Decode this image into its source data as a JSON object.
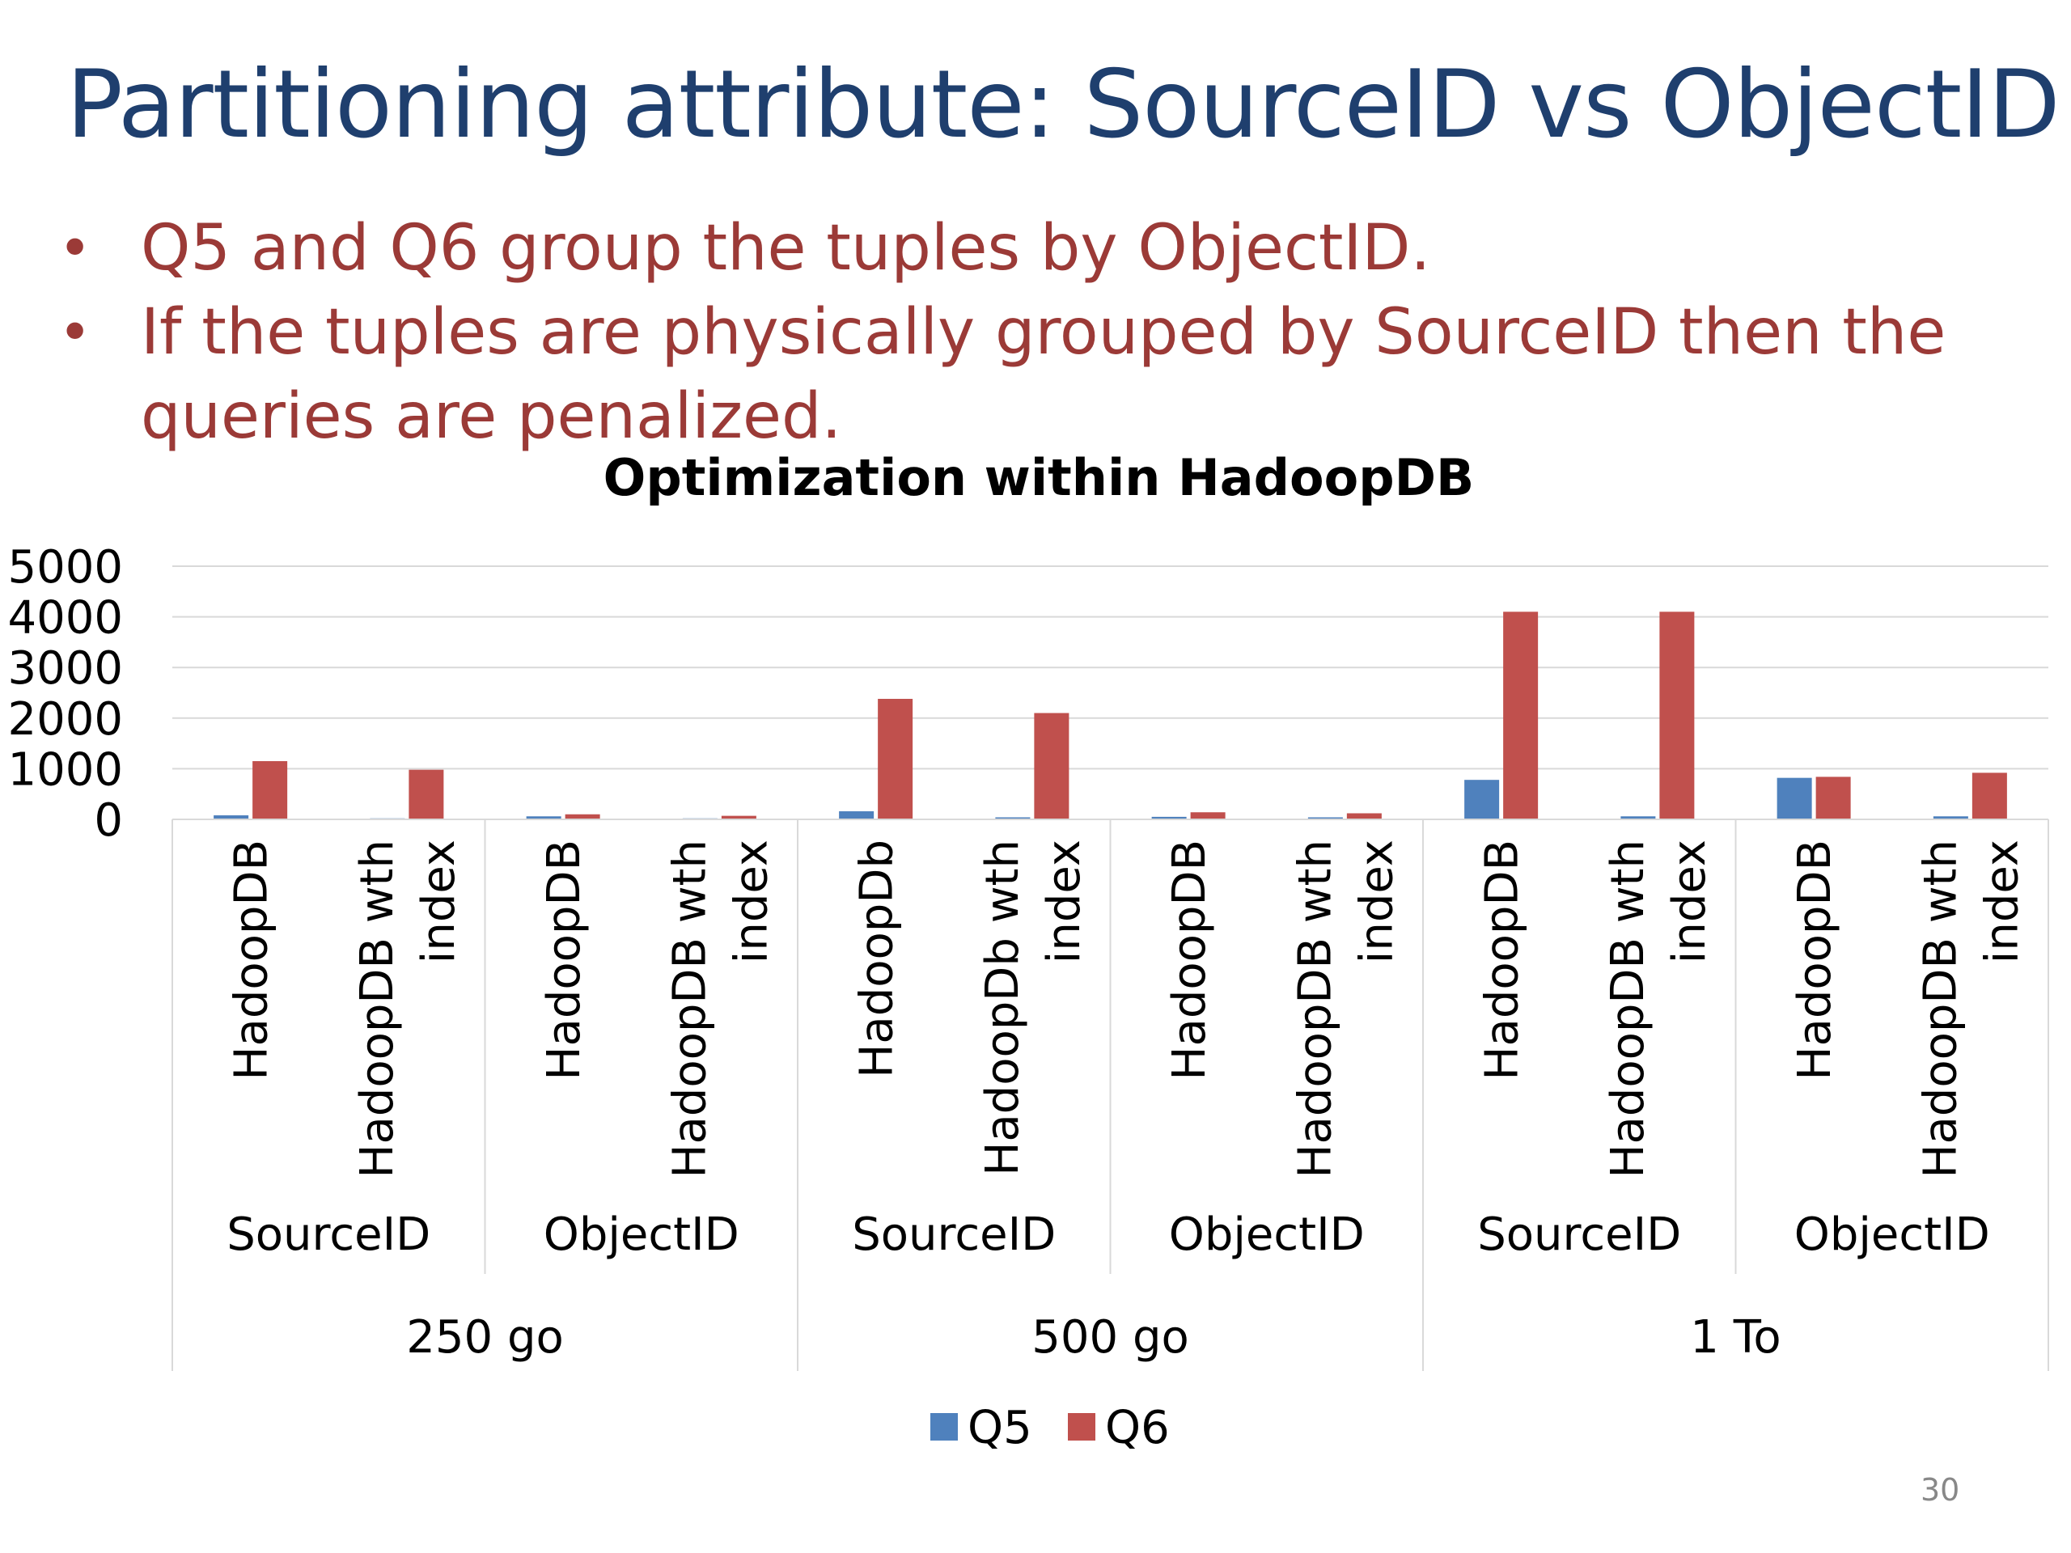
{
  "slide": {
    "title": "Partitioning attribute: SourceID vs ObjectID",
    "bullets": [
      "Q5 and Q6 group the tuples by ObjectID.",
      "If the tuples are physically grouped by SourceID  then the queries are penalized."
    ],
    "page_number": "30"
  },
  "chart_data": {
    "type": "bar",
    "title": "Optimization within HadoopDB",
    "ylim": [
      0,
      5000
    ],
    "y_ticks": [
      0,
      1000,
      2000,
      3000,
      4000,
      5000
    ],
    "grid": true,
    "legend_position": "bottom",
    "categories": [
      {
        "label": "HadoopDB",
        "attribute": "SourceID",
        "size": "250 go"
      },
      {
        "label": "HadoopDB wth index",
        "attribute": "SourceID",
        "size": "250 go"
      },
      {
        "label": "HadoopDB",
        "attribute": "ObjectID",
        "size": "250 go"
      },
      {
        "label": "HadoopDB wth index",
        "attribute": "ObjectID",
        "size": "250 go"
      },
      {
        "label": "HadoopDb",
        "attribute": "SourceID",
        "size": "500 go"
      },
      {
        "label": "HadoopDb wth index",
        "attribute": "SourceID",
        "size": "500 go"
      },
      {
        "label": "HadoopDB",
        "attribute": "ObjectID",
        "size": "500 go"
      },
      {
        "label": "HadoopDB wth index",
        "attribute": "ObjectID",
        "size": "500 go"
      },
      {
        "label": "HadoopDB",
        "attribute": "SourceID",
        "size": "1 To"
      },
      {
        "label": "HadoopDB wth index",
        "attribute": "SourceID",
        "size": "1 To"
      },
      {
        "label": "HadoopDB",
        "attribute": "ObjectID",
        "size": "1 To"
      },
      {
        "label": "HadoopDB wth index",
        "attribute": "ObjectID",
        "size": "1 To"
      }
    ],
    "attribute_groups": [
      "SourceID",
      "ObjectID",
      "SourceID",
      "ObjectID",
      "SourceID",
      "ObjectID"
    ],
    "size_groups": [
      "250 go",
      "500 go",
      "1 To"
    ],
    "series": [
      {
        "name": "Q5",
        "color": "#4f81bd",
        "values": [
          80,
          20,
          60,
          20,
          160,
          40,
          50,
          40,
          780,
          60,
          820,
          60
        ]
      },
      {
        "name": "Q6",
        "color": "#c0504d",
        "values": [
          1150,
          980,
          100,
          70,
          2380,
          2100,
          140,
          120,
          4100,
          4100,
          840,
          920
        ]
      }
    ]
  }
}
